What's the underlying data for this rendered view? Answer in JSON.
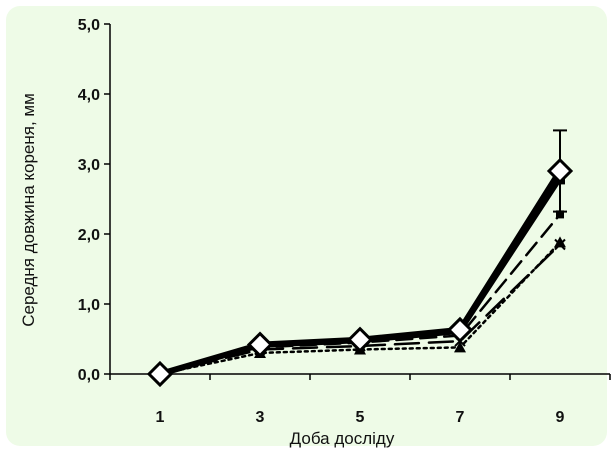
{
  "chart_data": {
    "type": "line",
    "xlabel": "Доба досліду",
    "ylabel": "Середня довжина кореня, мм",
    "categories": [
      "1",
      "3",
      "5",
      "7",
      "9"
    ],
    "y_ticks": [
      "0,0",
      "1,0",
      "2,0",
      "3,0",
      "4,0",
      "5,0"
    ],
    "ylim": [
      0,
      5
    ],
    "grid": false,
    "legend": "none",
    "series": [
      {
        "values": [
          0.0,
          0.42,
          0.49,
          0.63,
          2.9
        ],
        "marker": "diamond",
        "line": "thick-solid",
        "color": "#000000",
        "error": [
          0,
          0,
          0,
          0,
          0.58
        ]
      },
      {
        "values": [
          0.0,
          0.4,
          0.47,
          0.6,
          2.78
        ],
        "marker": "square",
        "line": "solid",
        "color": "#000000"
      },
      {
        "values": [
          0.0,
          0.38,
          0.45,
          0.55,
          2.28
        ],
        "marker": "square-small",
        "line": "dashed",
        "color": "#000000"
      },
      {
        "values": [
          0.0,
          0.35,
          0.4,
          0.47,
          1.85
        ],
        "marker": "x",
        "line": "long-dash",
        "color": "#000000"
      },
      {
        "values": [
          0.0,
          0.3,
          0.35,
          0.38,
          1.88
        ],
        "marker": "triangle",
        "line": "dotted",
        "color": "#000000"
      }
    ]
  }
}
